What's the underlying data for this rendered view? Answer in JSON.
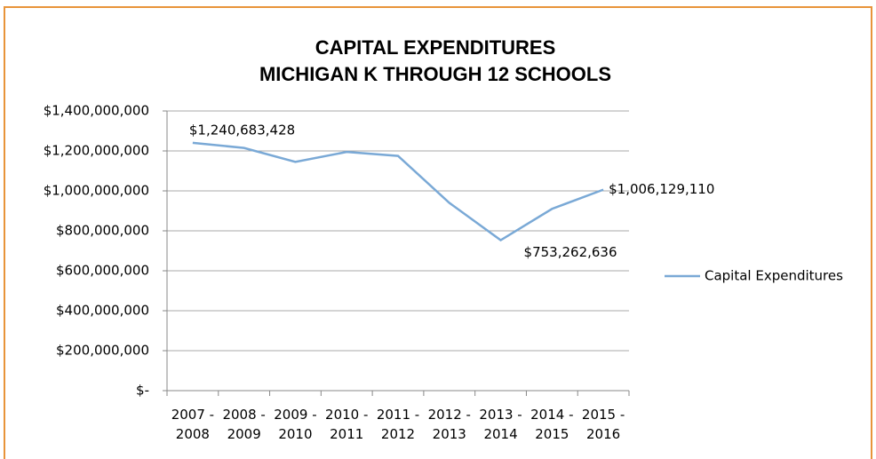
{
  "chart_data": {
    "type": "line",
    "title": [
      "CAPITAL EXPENDITURES",
      "MICHIGAN K THROUGH 12 SCHOOLS"
    ],
    "categories": [
      "2007 - 2008",
      "2008 - 2009",
      "2009 - 2010",
      "2010 - 2011",
      "2011 - 2012",
      "2012 - 2013",
      "2013 - 2014",
      "2014 - 2015",
      "2015 - 2016"
    ],
    "series": [
      {
        "name": "Capital Expenditures",
        "color": "#7aa9d6",
        "values": [
          1240683428,
          1215000000,
          1145000000,
          1195000000,
          1175000000,
          940000000,
          753262636,
          910000000,
          1006129110
        ],
        "value_labels": [
          "$1,240,683,428",
          null,
          null,
          null,
          null,
          null,
          "$753,262,636",
          null,
          "$1,006,129,110"
        ]
      }
    ],
    "ylim": [
      0,
      1400000000
    ],
    "yticks": [
      {
        "value": 0,
        "label": "$-"
      },
      {
        "value": 200000000,
        "label": "$200,000,000"
      },
      {
        "value": 400000000,
        "label": "$400,000,000"
      },
      {
        "value": 600000000,
        "label": "$600,000,000"
      },
      {
        "value": 800000000,
        "label": "$800,000,000"
      },
      {
        "value": 1000000000,
        "label": "$1,000,000,000"
      },
      {
        "value": 1200000000,
        "label": "$1,200,000,000"
      },
      {
        "value": 1400000000,
        "label": "$1,400,000,000"
      }
    ],
    "grid": true,
    "legend": "right"
  }
}
